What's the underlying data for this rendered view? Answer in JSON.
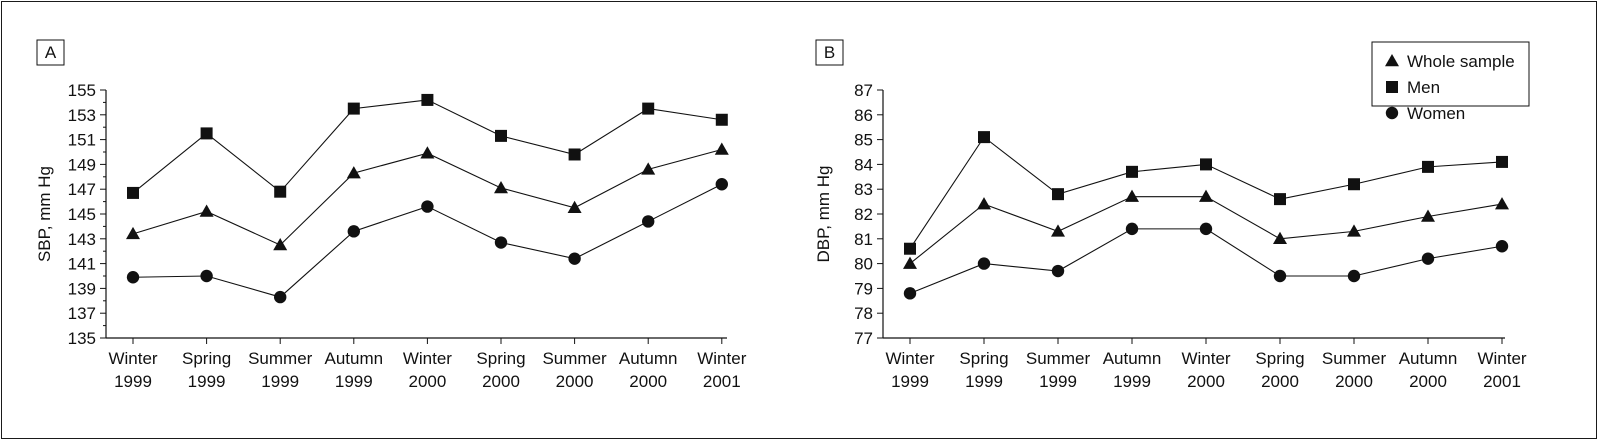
{
  "chart_data": [
    {
      "panel": "A",
      "type": "line",
      "ylabel": "SBP, mm Hg",
      "ylim": [
        135,
        155
      ],
      "yticks": [
        135,
        137,
        139,
        141,
        143,
        145,
        147,
        149,
        151,
        153,
        155
      ],
      "categories": [
        [
          "Winter",
          "1999"
        ],
        [
          "Spring",
          "1999"
        ],
        [
          "Summer",
          "1999"
        ],
        [
          "Autumn",
          "1999"
        ],
        [
          "Winter",
          "2000"
        ],
        [
          "Spring",
          "2000"
        ],
        [
          "Summer",
          "2000"
        ],
        [
          "Autumn",
          "2000"
        ],
        [
          "Winter",
          "2001"
        ]
      ],
      "series": [
        {
          "name": "Whole sample",
          "marker": "triangle",
          "values": [
            143.4,
            145.2,
            142.5,
            148.3,
            149.9,
            147.1,
            145.5,
            148.6,
            150.2
          ]
        },
        {
          "name": "Men",
          "marker": "square",
          "values": [
            146.7,
            151.5,
            146.8,
            153.5,
            154.2,
            151.3,
            149.8,
            153.5,
            152.6
          ]
        },
        {
          "name": "Women",
          "marker": "circle",
          "values": [
            139.9,
            140.0,
            138.3,
            143.6,
            145.6,
            142.7,
            141.4,
            144.4,
            147.4
          ]
        }
      ]
    },
    {
      "panel": "B",
      "type": "line",
      "ylabel": "DBP, mm Hg",
      "ylim": [
        77,
        87
      ],
      "yticks": [
        77,
        78,
        79,
        80,
        81,
        82,
        83,
        84,
        85,
        86,
        87
      ],
      "categories": [
        [
          "Winter",
          "1999"
        ],
        [
          "Spring",
          "1999"
        ],
        [
          "Summer",
          "1999"
        ],
        [
          "Autumn",
          "1999"
        ],
        [
          "Winter",
          "2000"
        ],
        [
          "Spring",
          "2000"
        ],
        [
          "Summer",
          "2000"
        ],
        [
          "Autumn",
          "2000"
        ],
        [
          "Winter",
          "2001"
        ]
      ],
      "series": [
        {
          "name": "Whole sample",
          "marker": "triangle",
          "values": [
            80.0,
            82.4,
            81.3,
            82.7,
            82.7,
            81.0,
            81.3,
            81.9,
            82.4
          ]
        },
        {
          "name": "Men",
          "marker": "square",
          "values": [
            80.6,
            85.1,
            82.8,
            83.7,
            84.0,
            82.6,
            83.2,
            83.9,
            84.1
          ]
        },
        {
          "name": "Women",
          "marker": "circle",
          "values": [
            78.8,
            80.0,
            79.7,
            81.4,
            81.4,
            79.5,
            79.5,
            80.2,
            80.7
          ]
        }
      ],
      "legend": {
        "placement": "top-right",
        "entries": [
          {
            "label": "Whole sample",
            "marker": "triangle"
          },
          {
            "label": "Men",
            "marker": "square"
          },
          {
            "label": "Women",
            "marker": "circle"
          }
        ]
      }
    }
  ]
}
